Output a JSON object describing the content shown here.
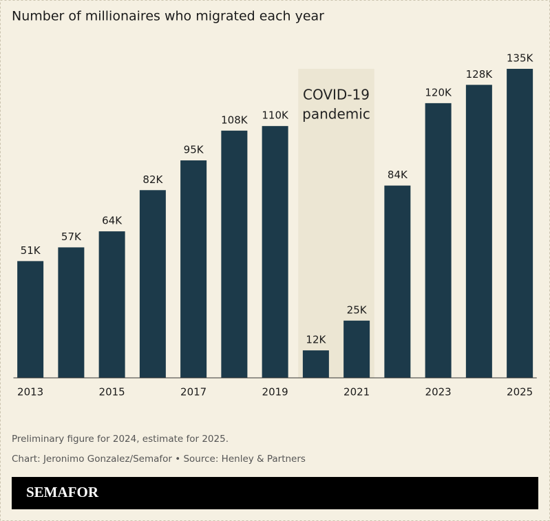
{
  "chart_data": {
    "type": "bar",
    "title": "Number of millionaires who migrated each year",
    "categories": [
      "2013",
      null,
      "2015",
      null,
      "2017",
      null,
      "2019",
      null,
      "2021",
      null,
      "2023",
      null,
      "2025"
    ],
    "values": [
      51,
      57,
      64,
      82,
      95,
      108,
      110,
      12,
      25,
      84,
      120,
      128,
      135
    ],
    "value_labels": [
      "51K",
      "57K",
      "64K",
      "82K",
      "95K",
      "108K",
      "110K",
      "12K",
      "25K",
      "84K",
      "120K",
      "128K",
      "135K"
    ],
    "color": "#1c3a4a",
    "annotation": [
      "COVID-19",
      "pandemic"
    ],
    "notes": [
      "Preliminary figure for 2024, estimate for 2025.",
      "Chart: Jeronimo Gonzalez/Semafor • Source: Henley & Partners"
    ],
    "logo": "SEMAFOR"
  }
}
